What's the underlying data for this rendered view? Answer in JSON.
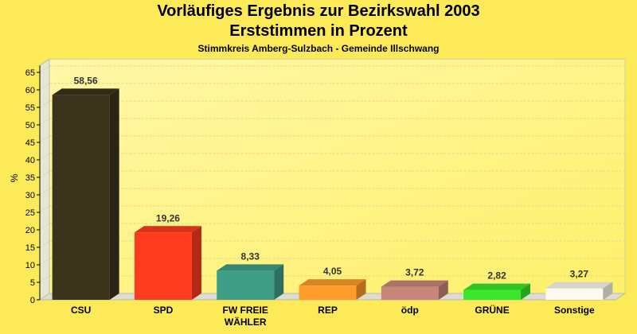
{
  "chart_data": {
    "type": "bar",
    "title": "Vorläufiges Ergebnis zur Bezirkswahl 2003",
    "subtitle": "Erststimmen in Prozent",
    "subsubtitle": "Stimmkreis Amberg-Sulzbach - Gemeinde Illschwang",
    "ylabel": "%",
    "ylim": [
      0,
      67
    ],
    "yticks": [
      0,
      5,
      10,
      15,
      20,
      25,
      30,
      35,
      40,
      45,
      50,
      55,
      60,
      65
    ],
    "categories": [
      "CSU",
      "SPD",
      "FW FREIE\nWÄHLER",
      "REP",
      "ödp",
      "GRÜNE",
      "Sonstige"
    ],
    "values": [
      58.56,
      19.26,
      8.33,
      4.05,
      3.72,
      2.82,
      3.27
    ],
    "value_labels": [
      "58,56",
      "19,26",
      "8,33",
      "4,05",
      "3,72",
      "2,82",
      "3,27"
    ],
    "colors": [
      "#3b331c",
      "#ff3b1f",
      "#3f9f86",
      "#ff9d2a",
      "#c8867a",
      "#39e82b",
      "#fafaf0"
    ],
    "grid": true
  }
}
